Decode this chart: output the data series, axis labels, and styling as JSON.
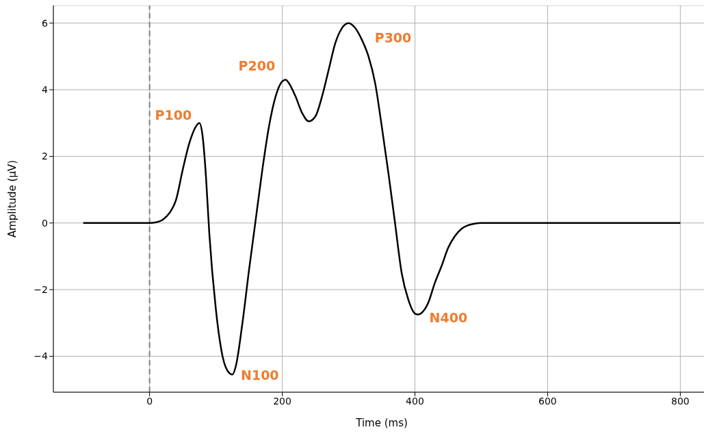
{
  "chart_data": {
    "type": "line",
    "xlabel": "Time (ms)",
    "ylabel": "Amplitude (µV)",
    "x": [
      -100,
      0,
      10,
      20,
      30,
      40,
      50,
      60,
      70,
      75,
      80,
      85,
      90,
      100,
      110,
      120,
      125,
      130,
      140,
      150,
      160,
      170,
      180,
      190,
      200,
      205,
      210,
      220,
      230,
      240,
      250,
      260,
      270,
      280,
      290,
      300,
      310,
      320,
      330,
      340,
      350,
      360,
      370,
      380,
      390,
      400,
      405,
      410,
      420,
      430,
      440,
      450,
      460,
      470,
      480,
      490,
      500,
      800
    ],
    "series": [
      {
        "color": "#000000",
        "values": [
          0,
          0,
          0.02,
          0.1,
          0.3,
          0.7,
          1.6,
          2.4,
          2.9,
          3.0,
          2.6,
          1.4,
          -0.3,
          -2.6,
          -4.0,
          -4.5,
          -4.55,
          -4.3,
          -3.0,
          -1.4,
          0.1,
          1.6,
          2.9,
          3.8,
          4.25,
          4.3,
          4.2,
          3.8,
          3.3,
          3.05,
          3.2,
          3.8,
          4.6,
          5.4,
          5.85,
          6.0,
          5.85,
          5.5,
          5.0,
          4.2,
          2.9,
          1.5,
          0,
          -1.5,
          -2.3,
          -2.72,
          -2.75,
          -2.7,
          -2.4,
          -1.8,
          -1.3,
          -0.75,
          -0.4,
          -0.18,
          -0.07,
          -0.02,
          0,
          0
        ]
      }
    ],
    "xlim": [
      -145,
      845
    ],
    "xticks": [
      0,
      200,
      400,
      600,
      800
    ],
    "ylim": [
      -5.08,
      6.53
    ],
    "yticks": [
      {
        "value": -4,
        "label": "−4"
      },
      {
        "value": -2,
        "label": "−2"
      },
      0,
      2,
      4,
      6
    ],
    "grid": true,
    "line_style": "solid",
    "marker": "none",
    "ref_lines": [
      {
        "axis": "x",
        "value": 0,
        "color": "#808080",
        "line_style": "dashed"
      }
    ],
    "annotations": [
      {
        "text": "P100",
        "x": 75,
        "y": 3.0
      },
      {
        "text": "N100",
        "x": 125,
        "y": -4.55
      },
      {
        "text": "P200",
        "x": 205,
        "y": 4.3
      },
      {
        "text": "P300",
        "x": 300,
        "y": 6.0
      },
      {
        "text": "N400",
        "x": 405,
        "y": -2.75
      }
    ]
  }
}
